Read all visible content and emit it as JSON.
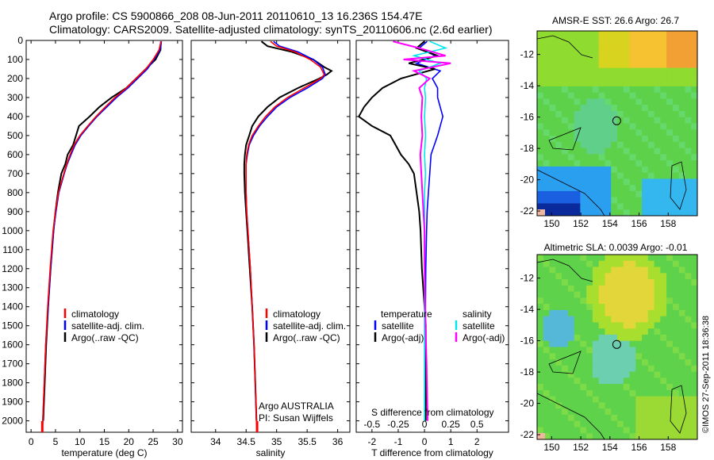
{
  "header": {
    "title_line1": "Argo profile: CS 5900866_208 08-Jun-2011 20110610_13 16.236S 154.47E",
    "title_line2": "Climatology: CARS2009. Satellite-adjusted climatology: synTS_20110606.nc (2.6d earlier)"
  },
  "colors": {
    "climatology": "#ff0000",
    "satellite": "#0000ff",
    "argo": "#000000",
    "sal_satellite": "#00e5ee",
    "sal_argo": "#ff00ff"
  },
  "chart_data": [
    {
      "type": "line",
      "name": "temperature-profile",
      "xlabel": "temperature (deg C)",
      "ylabel": "",
      "xlim": [
        -1,
        31
      ],
      "ylim": [
        2060,
        0
      ],
      "xticks": [
        0,
        5,
        10,
        15,
        20,
        25,
        30
      ],
      "yticks": [
        0,
        100,
        200,
        300,
        400,
        500,
        600,
        700,
        800,
        900,
        1000,
        1100,
        1200,
        1300,
        1400,
        1500,
        1600,
        1700,
        1800,
        1900,
        2000
      ],
      "legend": [
        "climatology",
        "satellite-adj. clim.",
        "Argo(..raw -QC)"
      ],
      "series": [
        {
          "name": "Argo(..raw -QC)",
          "color": "#000000",
          "depth": [
            5,
            50,
            100,
            150,
            200,
            250,
            300,
            350,
            400,
            450,
            500,
            550,
            600,
            650,
            700,
            800,
            900,
            1000,
            1200,
            1400,
            1600,
            1800,
            2000
          ],
          "values": [
            26.6,
            26.5,
            25.5,
            23.5,
            21.5,
            19.5,
            16.5,
            14,
            12,
            9.8,
            9.2,
            8.6,
            7.5,
            7,
            6.2,
            5.5,
            5,
            4.6,
            4,
            3.5,
            3.1,
            2.8,
            2.5
          ]
        },
        {
          "name": "satellite-adj. clim.",
          "color": "#0000ff",
          "depth": [
            5,
            50,
            100,
            150,
            200,
            250,
            300,
            350,
            400,
            450,
            500,
            550,
            600,
            650,
            700,
            800,
            900,
            1000,
            1200,
            1400,
            1600,
            1800,
            2000,
            2060
          ],
          "values": [
            26.7,
            26.4,
            25.2,
            23.8,
            21.8,
            19.8,
            17.5,
            15.5,
            13.5,
            11.8,
            10.2,
            9,
            8.2,
            7.4,
            6.8,
            5.7,
            5.1,
            4.6,
            4,
            3.5,
            3,
            2.7,
            2.4,
            2.3
          ]
        },
        {
          "name": "climatology",
          "color": "#ff0000",
          "depth": [
            5,
            50,
            100,
            150,
            200,
            250,
            300,
            350,
            400,
            450,
            500,
            550,
            600,
            650,
            700,
            800,
            900,
            1000,
            1200,
            1400,
            1600,
            1800,
            2000,
            2060
          ],
          "values": [
            26.6,
            26.2,
            25,
            23.5,
            21.5,
            19.5,
            17.2,
            15.2,
            13.3,
            11.6,
            10,
            8.8,
            8,
            7.3,
            6.7,
            5.6,
            5,
            4.5,
            3.9,
            3.4,
            3,
            2.7,
            2.4,
            2.3
          ]
        }
      ]
    },
    {
      "type": "line",
      "name": "salinity-profile",
      "xlabel": "salinity",
      "xlim": [
        33.6,
        36.2
      ],
      "ylim": [
        2060,
        0
      ],
      "xticks": [
        34,
        34.5,
        35,
        35.5,
        36
      ],
      "legend": [
        "climatology",
        "satellite-adj. clim.",
        "Argo(..raw -QC)"
      ],
      "series": [
        {
          "name": "Argo(..raw -QC)",
          "color": "#000000",
          "depth": [
            5,
            30,
            60,
            100,
            140,
            160,
            180,
            200,
            250,
            300,
            350,
            400,
            450,
            500,
            550,
            600,
            650,
            700,
            800,
            900,
            1000,
            1200,
            1400,
            1600,
            1800,
            2000
          ],
          "values": [
            34.75,
            34.85,
            35.25,
            35.6,
            35.78,
            35.9,
            35.82,
            35.7,
            35.35,
            35.05,
            34.85,
            34.7,
            34.6,
            34.55,
            34.5,
            34.48,
            34.47,
            34.47,
            34.48,
            34.5,
            34.52,
            34.56,
            34.6,
            34.63,
            34.65,
            34.67
          ]
        },
        {
          "name": "satellite-adj. clim.",
          "color": "#0000ff",
          "depth": [
            5,
            30,
            60,
            100,
            140,
            180,
            200,
            250,
            300,
            350,
            400,
            450,
            500,
            550,
            600,
            650,
            700,
            800,
            900,
            1000,
            1200,
            1400,
            1600,
            1800,
            2000,
            2060
          ],
          "values": [
            34.95,
            35.05,
            35.35,
            35.6,
            35.75,
            35.8,
            35.75,
            35.5,
            35.22,
            35,
            34.85,
            34.72,
            34.62,
            34.55,
            34.52,
            34.5,
            34.5,
            34.5,
            34.51,
            34.53,
            34.57,
            34.6,
            34.63,
            34.65,
            34.67,
            34.68
          ]
        },
        {
          "name": "climatology",
          "color": "#ff0000",
          "depth": [
            5,
            30,
            60,
            100,
            140,
            180,
            200,
            250,
            300,
            350,
            400,
            450,
            500,
            550,
            600,
            650,
            700,
            800,
            900,
            1000,
            1200,
            1400,
            1600,
            1800,
            2000,
            2060
          ],
          "values": [
            34.9,
            35,
            35.3,
            35.55,
            35.72,
            35.78,
            35.72,
            35.45,
            35.18,
            34.97,
            34.82,
            34.7,
            34.6,
            34.54,
            34.51,
            34.5,
            34.5,
            34.5,
            34.51,
            34.53,
            34.57,
            34.6,
            34.63,
            34.65,
            34.67,
            34.68
          ]
        }
      ]
    },
    {
      "type": "line",
      "name": "difference-profile",
      "xlabel": "T difference from climatology",
      "xlabel_top": "S difference from climatology",
      "xlim": [
        -2.6,
        3.2
      ],
      "ylim": [
        2060,
        0
      ],
      "xticks": [
        -2,
        -1,
        0,
        1,
        2
      ],
      "xticks_labels": [
        "-2",
        "-1",
        "0",
        "1",
        "2"
      ],
      "sticks": [
        -0.5,
        -0.25,
        0,
        0.25,
        0.5
      ],
      "sticks_labels": [
        "-0.5",
        "-0.25",
        "0",
        "0.25",
        "0.5"
      ],
      "legend_temperature": {
        "title": "temperature",
        "items": [
          "satellite",
          "Argo(-adj)"
        ]
      },
      "legend_salinity": {
        "title": "salinity",
        "items": [
          "satellite",
          "Argo(-adj)"
        ]
      },
      "series": [
        {
          "name": "T satellite",
          "color": "#0000ff",
          "depth": [
            5,
            40,
            80,
            120,
            160,
            200,
            250,
            300,
            350,
            400,
            450,
            500,
            600,
            700,
            800,
            900,
            1000,
            1200,
            1500,
            2000
          ],
          "values": [
            0.1,
            -0.2,
            0.4,
            -0.3,
            0.6,
            0.3,
            0.5,
            0.5,
            0.6,
            0.7,
            0.6,
            0.5,
            0.25,
            0.2,
            0.15,
            0.1,
            0.08,
            0.05,
            0.03,
            0.02
          ]
        },
        {
          "name": "T Argo(-adj)",
          "color": "#000000",
          "depth": [
            5,
            40,
            80,
            120,
            150,
            200,
            250,
            300,
            350,
            400,
            450,
            500,
            550,
            600,
            650,
            700,
            800,
            900,
            1000,
            1200,
            1500,
            2000
          ],
          "values": [
            0,
            -0.3,
            0.5,
            -0.6,
            0.4,
            -0.9,
            -1.6,
            -2.0,
            -2.3,
            -2.5,
            -2.0,
            -1.3,
            -1.1,
            -0.9,
            -0.6,
            -0.4,
            -0.3,
            -0.2,
            -0.15,
            -0.1,
            0.05,
            0.05
          ]
        },
        {
          "name": "S satellite",
          "color": "#00e5ee",
          "depth": [
            5,
            40,
            80,
            120,
            160,
            200,
            250,
            300,
            400,
            500,
            600,
            700,
            800,
            1000,
            1200,
            1500,
            2000
          ],
          "values": [
            0.05,
            0.2,
            -0.1,
            0.15,
            -0.05,
            0.02,
            0,
            0.01,
            0,
            0.01,
            0,
            0.01,
            0,
            0,
            0,
            0,
            0
          ]
        },
        {
          "name": "S Argo(-adj)",
          "color": "#ff00ff",
          "depth": [
            5,
            40,
            80,
            100,
            120,
            160,
            200,
            250,
            300,
            400,
            500,
            600,
            700,
            800,
            900,
            1000,
            1200,
            1500,
            1700,
            2000
          ],
          "values": [
            -0.3,
            -0.05,
            0.2,
            -0.2,
            0.25,
            -0.1,
            0.05,
            -0.05,
            -0.02,
            -0.03,
            -0.02,
            -0.04,
            -0.03,
            -0.02,
            -0.01,
            0,
            0,
            0.01,
            0.02,
            0.03
          ]
        }
      ]
    },
    {
      "type": "heatmap",
      "name": "sst-map",
      "title": "AMSR-E SST: 26.6 Argo: 26.7",
      "xlim": [
        149,
        160
      ],
      "ylim": [
        -22.3,
        -10.5
      ],
      "xticks": [
        150,
        152,
        154,
        156,
        158
      ],
      "yticks": [
        -12,
        -14,
        -16,
        -18,
        -20,
        -22
      ],
      "xtick_labels": [
        "150",
        "152",
        "154",
        "156",
        "158"
      ],
      "ytick_labels": [
        "-12",
        "-14",
        "-16",
        "-18",
        "-20",
        "-22"
      ],
      "argo_position": [
        154.47,
        -16.236
      ]
    },
    {
      "type": "heatmap",
      "name": "sla-map",
      "title": "Altimetric SLA: 0.0039 Argo: -0.01",
      "xlim": [
        149,
        160
      ],
      "ylim": [
        -22.3,
        -10.5
      ],
      "xticks": [
        150,
        152,
        154,
        156,
        158
      ],
      "yticks": [
        -12,
        -14,
        -16,
        -18,
        -20,
        -22
      ],
      "xtick_labels": [
        "150",
        "152",
        "154",
        "156",
        "158"
      ],
      "ytick_labels": [
        "-12",
        "-14",
        "-16",
        "-18",
        "-20",
        "-22"
      ],
      "argo_position": [
        154.47,
        -16.236
      ]
    }
  ],
  "annotations": {
    "argo_country": "Argo AUSTRALIA",
    "pi": "PI: Susan Wijffels",
    "credit": "©IMOS 27-Sep-2011 18:36:38"
  }
}
